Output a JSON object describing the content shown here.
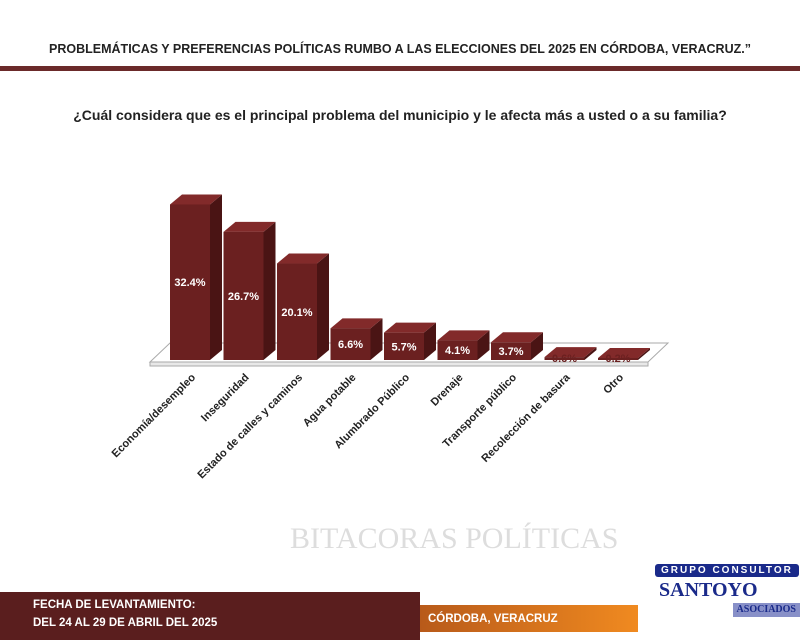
{
  "header": {
    "title": "PROBLEMÁTICAS Y PREFERENCIAS POLÍTICAS RUMBO A LAS ELECCIONES DEL 2025 EN CÓRDOBA, VERACRUZ.”"
  },
  "chart_data": {
    "type": "bar",
    "title": "¿Cuál considera que es el principal problema del municipio y le afecta más a usted o a su familia?",
    "categories": [
      "Economía/desempleo",
      "Inseguridad",
      "Estado de calles y caminos",
      "Agua potable",
      "Alumbrado Público",
      "Drenaje",
      "Transporte público",
      "Recolección de basura",
      "Otro"
    ],
    "values": [
      32.4,
      26.7,
      20.1,
      6.6,
      5.7,
      4.1,
      3.7,
      0.6,
      0.2
    ],
    "labels": [
      "32.4%",
      "26.7%",
      "20.1%",
      "6.6%",
      "5.7%",
      "4.1%",
      "3.7%",
      "0.6%",
      "0.2%"
    ],
    "color": "#6b2020",
    "xlabel": "",
    "ylabel": ""
  },
  "watermark": "BITACORAS POLÍTICAS",
  "footer": {
    "date_label": "FECHA DE LEVANTAMIENTO:",
    "date_value": "DEL 24 AL 29 DE ABRIL DEL 2025",
    "city": "CÓRDOBA, VERACRUZ"
  },
  "logo": {
    "top": "GRUPO CONSULTOR",
    "main": "SANTOYO",
    "sub": "ASOCIADOS"
  }
}
